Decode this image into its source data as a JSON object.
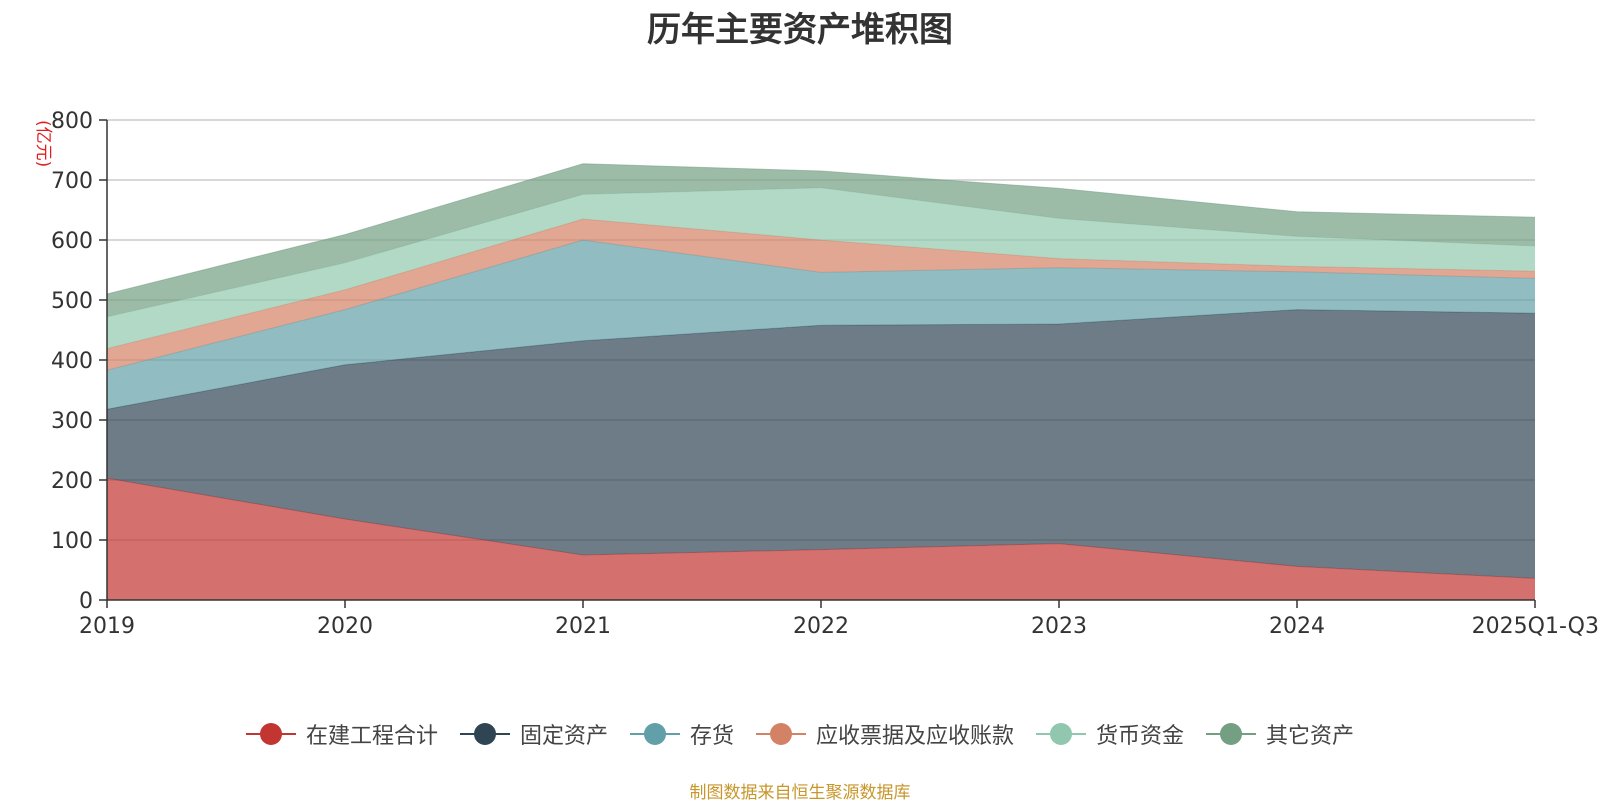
{
  "chart_data": {
    "type": "area",
    "stacked": true,
    "title": "历年主要资产堆积图",
    "ylabel": "(亿元)",
    "ylim": [
      0,
      800
    ],
    "yticks": [
      0,
      100,
      200,
      300,
      400,
      500,
      600,
      700,
      800
    ],
    "categories": [
      "2019",
      "2020",
      "2021",
      "2022",
      "2023",
      "2024",
      "2025Q1-Q3"
    ],
    "series": [
      {
        "name": "在建工程合计",
        "color": "#c23531",
        "values": [
          203,
          135,
          75,
          84,
          94,
          56,
          36
        ]
      },
      {
        "name": "固定资产",
        "color": "#2f4554",
        "values": [
          115,
          257,
          357,
          374,
          366,
          428,
          442
        ]
      },
      {
        "name": "存货",
        "color": "#61a0a8",
        "values": [
          65,
          92,
          168,
          88,
          94,
          63,
          58
        ]
      },
      {
        "name": "应收票据及应收账款",
        "color": "#d48265",
        "values": [
          36,
          33,
          35,
          54,
          15,
          9,
          12
        ]
      },
      {
        "name": "货币资金",
        "color": "#91c7ae",
        "values": [
          53,
          45,
          41,
          87,
          67,
          50,
          42
        ]
      },
      {
        "name": "其它资产",
        "color": "#749f83",
        "values": [
          38,
          47,
          51,
          28,
          50,
          41,
          48
        ]
      }
    ],
    "grid": true,
    "legend": "bottom-center",
    "source_note": "制图数据来自恒生聚源数据库"
  }
}
